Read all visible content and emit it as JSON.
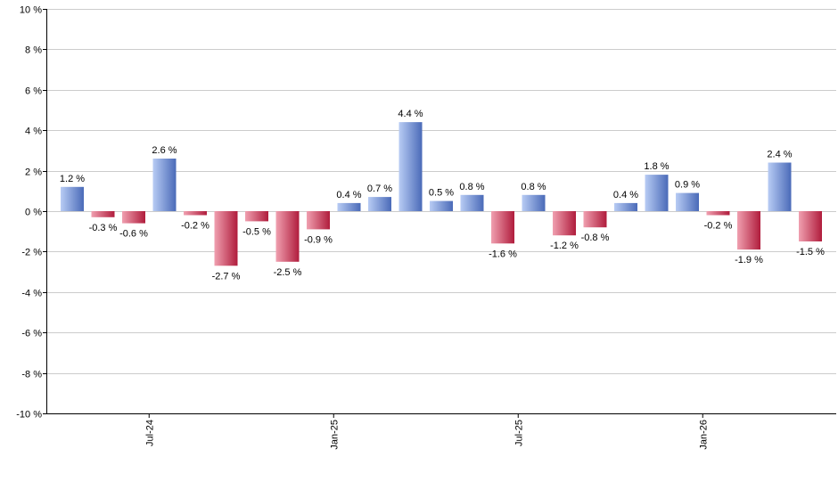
{
  "chart_data": {
    "type": "bar",
    "title": "",
    "xlabel": "",
    "ylabel": "",
    "ylim": [
      -10,
      10
    ],
    "yticks": [
      10,
      8,
      6,
      4,
      2,
      0,
      -2,
      -4,
      -6,
      -8,
      -10
    ],
    "ytick_labels": [
      "10 %",
      "8 %",
      "6 %",
      "4 %",
      "2 %",
      "0 %",
      "-2 %",
      "-4 %",
      "-6 %",
      "-8 %",
      "-10 %"
    ],
    "grid": true,
    "legend": "none",
    "xtick_labels": [
      {
        "label": "Jul-24",
        "index": 2.5
      },
      {
        "label": "Jan-25",
        "index": 8.5
      },
      {
        "label": "Jul-25",
        "index": 14.5
      },
      {
        "label": "Jan-26",
        "index": 20.5
      }
    ],
    "values": [
      1.2,
      -0.3,
      -0.6,
      2.6,
      -0.2,
      -2.7,
      -0.5,
      -2.5,
      -0.9,
      0.4,
      0.7,
      4.4,
      0.5,
      0.8,
      -1.6,
      0.8,
      -1.2,
      -0.8,
      0.4,
      1.8,
      0.9,
      -0.2,
      -1.9,
      2.4,
      -1.5
    ],
    "data_labels": [
      "1.2 %",
      "-0.3 %",
      "-0.6 %",
      "2.6 %",
      "-0.2 %",
      "-2.7 %",
      "-0.5 %",
      "-2.5 %",
      "-0.9 %",
      "0.4 %",
      "0.7 %",
      "4.4 %",
      "0.5 %",
      "0.8 %",
      "-1.6 %",
      "0.8 %",
      "-1.2 %",
      "-0.8 %",
      "0.4 %",
      "1.8 %",
      "0.9 %",
      "-0.2 %",
      "-1.9 %",
      "2.4 %",
      "-1.5 %"
    ],
    "colors": {
      "positive_light": "#b8ccf4",
      "positive_dark": "#4a6ab8",
      "negative_light": "#f0a0b0",
      "negative_dark": "#b01c3c",
      "grid": "#cccccc"
    }
  }
}
